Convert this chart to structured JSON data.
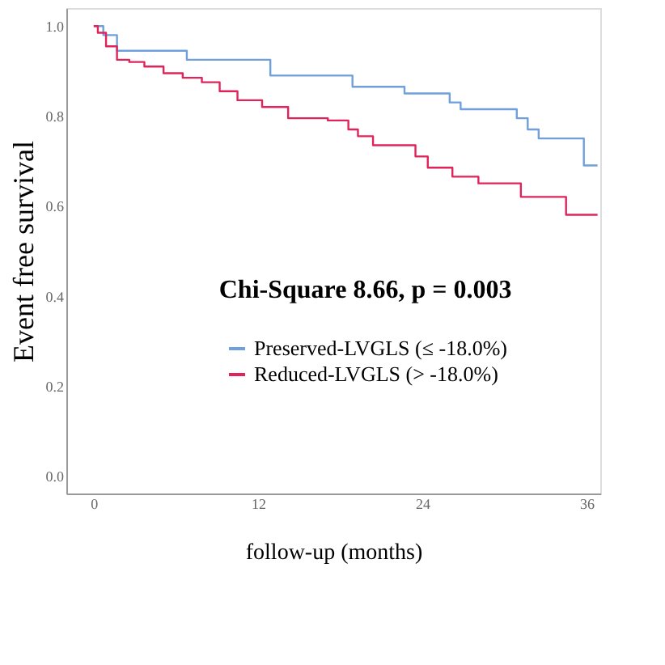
{
  "chart_data": {
    "type": "step",
    "xlabel": "follow-up (months)",
    "ylabel": "Event free survival",
    "xlim": [
      -2,
      37
    ],
    "xticks": [
      0,
      12,
      24,
      36
    ],
    "ylim": [
      -0.04,
      1.04
    ],
    "yticks": [
      {
        "value": 0,
        "label": "0.0"
      },
      {
        "value": 0.2,
        "label": "0.2"
      },
      {
        "value": 0.4,
        "label": "0.4"
      },
      {
        "value": 0.6,
        "label": "0.6"
      },
      {
        "value": 0.8,
        "label": "0.8"
      },
      {
        "value": 1,
        "label": "1.0"
      }
    ],
    "grid": false,
    "legend": "bottom",
    "line_style": "solid",
    "annotations": [
      "Chi-Square 8.66, p = 0.003"
    ],
    "series": [
      {
        "name": "Preserved-LVGLS (≤ -18.0%)",
        "color": "#6fa0dc",
        "x": [
          0,
          0.7,
          1.7,
          6.8,
          12.9,
          18.9,
          22.7,
          26,
          26.8,
          30.9,
          31.7,
          32.5,
          35.8,
          36.8
        ],
        "values": [
          1,
          0.98,
          0.945,
          0.925,
          0.89,
          0.865,
          0.85,
          0.83,
          0.815,
          0.795,
          0.77,
          0.75,
          0.69,
          0.69
        ]
      },
      {
        "name": "Reduced-LVGLS (> -18.0%)",
        "color": "#e0245a",
        "x": [
          0,
          0.3,
          0.9,
          1.7,
          2.6,
          3.7,
          5.1,
          6.5,
          7.9,
          9.2,
          10.5,
          12.3,
          14.2,
          17.1,
          18.6,
          19.3,
          20.4,
          23.5,
          24.4,
          26.2,
          28.1,
          31.2,
          34.5,
          36.8
        ],
        "values": [
          1,
          0.985,
          0.955,
          0.925,
          0.92,
          0.91,
          0.895,
          0.885,
          0.875,
          0.855,
          0.835,
          0.82,
          0.795,
          0.79,
          0.77,
          0.755,
          0.735,
          0.71,
          0.685,
          0.665,
          0.65,
          0.62,
          0.58,
          0.58
        ]
      }
    ]
  }
}
